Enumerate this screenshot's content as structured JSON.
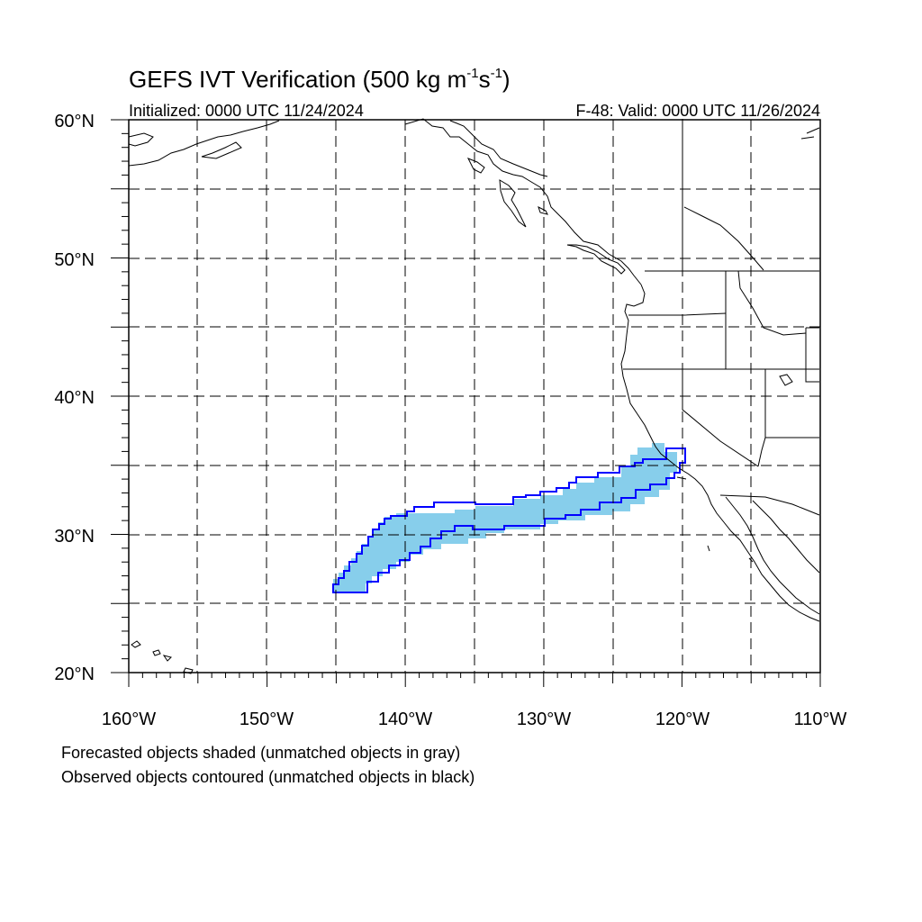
{
  "figure": {
    "title_main": "GEFS IVT Verification (500 kg m",
    "title_exp1": "-1",
    "title_mid": "s",
    "title_exp2": "-1",
    "title_end": ")",
    "init_label": "Initialized: 0000 UTC 11/24/2024",
    "valid_label": "F-48: Valid: 0000 UTC 11/26/2024"
  },
  "map": {
    "lon_range": [
      -160,
      -110
    ],
    "lat_range": [
      20,
      60
    ],
    "lat_ticks": [
      "60°N",
      "50°N",
      "40°N",
      "30°N",
      "20°N"
    ],
    "lon_ticks": [
      "160°W",
      "150°W",
      "140°W",
      "130°W",
      "120°W",
      "110°W"
    ],
    "grid": "dashed every 5 degrees",
    "forecast_color": "#87ceeb",
    "observed_color": "#0000ff",
    "coast_color": "#000000"
  },
  "captions": {
    "forecast": "Forecasted objects shaded (unmatched objects in gray)",
    "observed": "Observed objects contoured (unmatched objects in black)"
  }
}
